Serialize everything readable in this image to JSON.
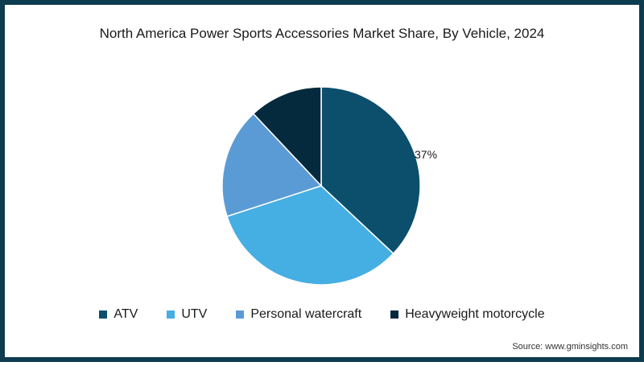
{
  "chart_data": {
    "type": "pie",
    "title": "North America Power Sports Accessories Market Share, By Vehicle, 2024",
    "categories": [
      "ATV",
      "UTV",
      "Personal watercraft",
      "Heavyweight motorcycle"
    ],
    "values": [
      37,
      33,
      18,
      12
    ],
    "labeled_values": {
      "ATV": "37%"
    },
    "colors": [
      "#0b4f6c",
      "#45aee3",
      "#5b9bd5",
      "#062a3d"
    ],
    "start_angle_deg": 0,
    "direction": "clockwise",
    "legend_position": "bottom",
    "note": "Only the ATV slice carries a visible label (37%); the other three values are estimated from slice angles."
  },
  "header": {
    "title": "North America Power Sports Accessories Market Share, By Vehicle, 2024"
  },
  "pie": {
    "label_atv": "37%"
  },
  "legend": {
    "items": [
      {
        "label": "ATV",
        "color": "#0b4f6c"
      },
      {
        "label": "UTV",
        "color": "#45aee3"
      },
      {
        "label": "Personal watercraft",
        "color": "#5b9bd5"
      },
      {
        "label": "Heavyweight motorcycle",
        "color": "#062a3d"
      }
    ]
  },
  "footer": {
    "source": "Source: www.gminsights.com"
  }
}
